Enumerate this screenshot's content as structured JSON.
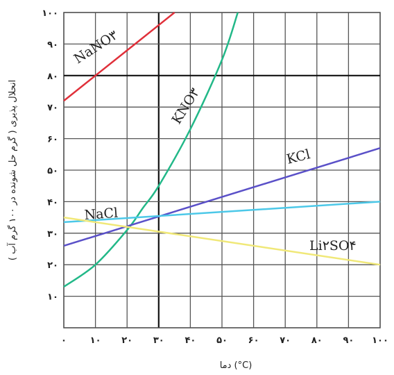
{
  "chart_data": {
    "type": "line",
    "xlabel": "دما (°C)",
    "ylabel": "انحلال پذیری ( گرم حل شونده در ۱۰۰ گرم آب )",
    "xlim": [
      0,
      100
    ],
    "ylim": [
      0,
      100
    ],
    "x_ticks": [
      "۰",
      "۱۰",
      "۲۰",
      "۳۰",
      "۴۰",
      "۵۰",
      "۶۰",
      "۷۰",
      "۸۰",
      "۹۰",
      "۱۰۰"
    ],
    "y_ticks": [
      "۱۰",
      "۲۰",
      "۳۰",
      "۴۰",
      "۵۰",
      "۶۰",
      "۷۰",
      "۸۰",
      "۹۰",
      "۱۰۰"
    ],
    "grid": true,
    "series": [
      {
        "name": "NaNO۳",
        "color": "#e0303a",
        "x": [
          0,
          10,
          20,
          30,
          35
        ],
        "y": [
          72,
          80,
          88,
          96,
          100
        ]
      },
      {
        "name": "KNO۳",
        "color": "#22b888",
        "x": [
          0,
          10,
          20,
          25,
          30,
          40,
          50,
          55
        ],
        "y": [
          13,
          20,
          31,
          38,
          45,
          63,
          85,
          100
        ]
      },
      {
        "name": "KCl",
        "color": "#5a50c8",
        "x": [
          0,
          100
        ],
        "y": [
          26,
          57
        ]
      },
      {
        "name": "NaCl",
        "color": "#4cc8e8",
        "x": [
          0,
          100
        ],
        "y": [
          33.5,
          40
        ]
      },
      {
        "name": "Li۲SO۴",
        "color": "#f0e878",
        "x": [
          0,
          100
        ],
        "y": [
          35,
          20
        ]
      }
    ],
    "labels": [
      {
        "text": "NaNO۳",
        "series": "NaNO۳"
      },
      {
        "text": "KNO۳",
        "series": "KNO۳"
      },
      {
        "text": "KCl",
        "series": "KCl"
      },
      {
        "text": "NaCl",
        "series": "NaCl"
      },
      {
        "text": "Li۲SO۴",
        "series": "Li۲SO۴"
      }
    ]
  }
}
